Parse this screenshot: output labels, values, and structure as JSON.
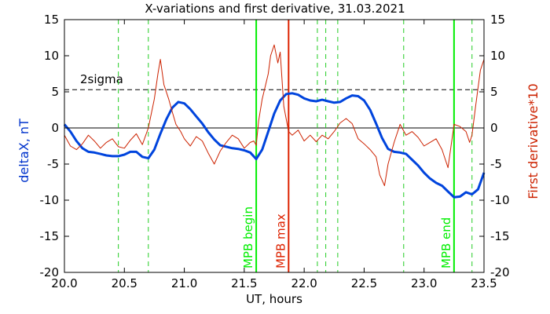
{
  "chart_data": {
    "type": "line",
    "title": "X-variations and first derivative, 31.03.2021",
    "xlabel": "UT, hours",
    "ylabel_left": "deltaX, nT",
    "ylabel_right": "First derivative*10",
    "xlim": [
      20.0,
      23.5
    ],
    "ylim": [
      -20,
      15
    ],
    "x_ticks": [
      "20.0",
      "20.5",
      "21.0",
      "21.5",
      "22.0",
      "22.5",
      "23.0",
      "23.5"
    ],
    "x_tick_values": [
      20.0,
      20.5,
      21.0,
      21.5,
      22.0,
      22.5,
      23.0,
      23.5
    ],
    "y_ticks": [
      -20,
      -15,
      -10,
      -5,
      0,
      5,
      10,
      15
    ],
    "threshold": {
      "label": "2sigma",
      "value": 5.3
    },
    "markers": [
      {
        "x": 20.45,
        "label": "",
        "color": "#22cc22",
        "style": "dashed"
      },
      {
        "x": 20.7,
        "label": "",
        "color": "#22cc22",
        "style": "dashed"
      },
      {
        "x": 21.6,
        "label": "MPB begin",
        "color": "#00ee00",
        "style": "solid"
      },
      {
        "x": 21.87,
        "label": "MPB max",
        "color": "#dd2200",
        "style": "solid"
      },
      {
        "x": 22.11,
        "label": "",
        "color": "#22cc22",
        "style": "dashed"
      },
      {
        "x": 22.18,
        "label": "",
        "color": "#22cc22",
        "style": "dashed"
      },
      {
        "x": 22.28,
        "label": "",
        "color": "#22cc22",
        "style": "dashed"
      },
      {
        "x": 22.83,
        "label": "",
        "color": "#22cc22",
        "style": "dashed"
      },
      {
        "x": 23.25,
        "label": "MPB end",
        "color": "#00ee00",
        "style": "solid"
      },
      {
        "x": 23.4,
        "label": "",
        "color": "#22cc22",
        "style": "dashed"
      }
    ],
    "series": [
      {
        "color": "#0044dd",
        "x": [
          20.0,
          20.05,
          20.1,
          20.15,
          20.2,
          20.25,
          20.3,
          20.35,
          20.4,
          20.45,
          20.5,
          20.55,
          20.6,
          20.65,
          20.7,
          20.75,
          20.8,
          20.85,
          20.9,
          20.95,
          21.0,
          21.05,
          21.1,
          21.15,
          21.2,
          21.25,
          21.3,
          21.35,
          21.4,
          21.45,
          21.5,
          21.55,
          21.6,
          21.65,
          21.7,
          21.75,
          21.8,
          21.85,
          21.9,
          21.95,
          22.0,
          22.05,
          22.1,
          22.15,
          22.2,
          22.25,
          22.3,
          22.35,
          22.4,
          22.45,
          22.5,
          22.55,
          22.6,
          22.65,
          22.7,
          22.75,
          22.8,
          22.85,
          22.9,
          22.95,
          23.0,
          23.05,
          23.1,
          23.15,
          23.2,
          23.25,
          23.3,
          23.35,
          23.4,
          23.45,
          23.5
        ],
        "values": [
          0.5,
          -0.5,
          -1.8,
          -2.8,
          -3.3,
          -3.4,
          -3.6,
          -3.8,
          -3.9,
          -3.9,
          -3.7,
          -3.3,
          -3.3,
          -4.0,
          -4.2,
          -3.0,
          -0.8,
          1.2,
          2.8,
          3.6,
          3.4,
          2.6,
          1.6,
          0.6,
          -0.6,
          -1.6,
          -2.4,
          -2.6,
          -2.8,
          -2.9,
          -3.1,
          -3.4,
          -4.3,
          -3.0,
          -0.5,
          2.0,
          3.8,
          4.7,
          4.8,
          4.6,
          4.1,
          3.8,
          3.7,
          3.9,
          3.7,
          3.5,
          3.6,
          4.1,
          4.5,
          4.4,
          3.8,
          2.5,
          0.6,
          -1.4,
          -2.9,
          -3.3,
          -3.4,
          -3.6,
          -4.4,
          -5.2,
          -6.2,
          -7.0,
          -7.6,
          -8.0,
          -8.8,
          -9.6,
          -9.5,
          -8.9,
          -9.2,
          -8.5,
          -6.2
        ]
      },
      {
        "color": "#cc2200",
        "x": [
          20.0,
          20.05,
          20.1,
          20.15,
          20.2,
          20.25,
          20.3,
          20.35,
          20.4,
          20.45,
          20.5,
          20.55,
          20.6,
          20.65,
          20.7,
          20.75,
          20.78,
          20.8,
          20.83,
          20.87,
          20.9,
          20.93,
          20.97,
          21.0,
          21.05,
          21.1,
          21.15,
          21.2,
          21.25,
          21.3,
          21.35,
          21.4,
          21.45,
          21.5,
          21.55,
          21.58,
          21.6,
          21.62,
          21.65,
          21.7,
          21.72,
          21.75,
          21.78,
          21.8,
          21.83,
          21.87,
          21.9,
          21.95,
          22.0,
          22.05,
          22.1,
          22.15,
          22.2,
          22.25,
          22.3,
          22.35,
          22.4,
          22.45,
          22.5,
          22.55,
          22.6,
          22.63,
          22.67,
          22.7,
          22.75,
          22.8,
          22.85,
          22.9,
          22.95,
          23.0,
          23.05,
          23.1,
          23.15,
          23.2,
          23.25,
          23.3,
          23.35,
          23.38,
          23.4,
          23.43,
          23.47,
          23.5
        ],
        "values": [
          -1.0,
          -2.5,
          -3.0,
          -2.2,
          -1.0,
          -1.8,
          -2.8,
          -2.0,
          -1.5,
          -2.6,
          -2.8,
          -1.7,
          -0.8,
          -2.3,
          0.0,
          4.0,
          7.5,
          9.5,
          6.0,
          4.0,
          2.2,
          0.5,
          -0.5,
          -1.5,
          -2.5,
          -1.2,
          -1.8,
          -3.5,
          -5.0,
          -3.2,
          -2.0,
          -1.0,
          -1.5,
          -2.8,
          -2.0,
          -1.8,
          -2.4,
          1.0,
          4.0,
          7.5,
          10.0,
          11.5,
          9.0,
          10.5,
          3.0,
          -0.5,
          -1.0,
          -0.3,
          -1.8,
          -1.0,
          -1.9,
          -1.0,
          -1.5,
          -0.5,
          0.7,
          1.3,
          0.6,
          -1.5,
          -2.2,
          -3.0,
          -4.0,
          -6.5,
          -8.0,
          -5.0,
          -2.0,
          0.5,
          -1.0,
          -0.5,
          -1.3,
          -2.5,
          -2.0,
          -1.5,
          -3.0,
          -5.5,
          0.5,
          0.2,
          -0.5,
          -2.0,
          -1.0,
          3.0,
          8.0,
          9.5
        ]
      }
    ]
  }
}
